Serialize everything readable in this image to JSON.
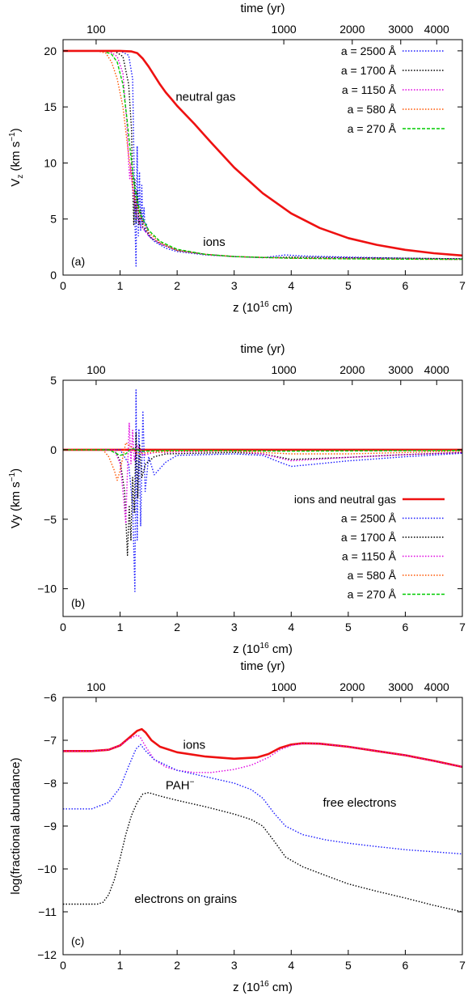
{
  "panels": [
    {
      "panel_label": "(a)",
      "chart_data": {
        "type": "line",
        "xlabel": "z (10",
        "xlabel_sup": "16",
        "xlabel_end": " cm)",
        "ylabel": "V",
        "ylabel_sub": "z",
        "ylabel_mid": " (km s",
        "ylabel_sup": "−1",
        "ylabel_end": ")",
        "x2label": "time (yr)",
        "xlim": [
          0,
          7
        ],
        "ylim": [
          0,
          21
        ],
        "xticks": [
          0,
          1,
          2,
          3,
          4,
          5,
          6,
          7
        ],
        "yticks": [
          0,
          5,
          10,
          15,
          20
        ],
        "x2ticks": [
          {
            "label": "100",
            "z": 0.58
          },
          {
            "label": "1000",
            "z": 3.87
          },
          {
            "label": "2000",
            "z": 5.07
          },
          {
            "label": "3000",
            "z": 5.92
          },
          {
            "label": "4000",
            "z": 6.55
          }
        ],
        "legend_position": "top-right",
        "annotations": [
          {
            "text": "neutral gas",
            "x": 2.5,
            "y": 15.9
          },
          {
            "text": "ions",
            "x": 2.65,
            "y": 2.95
          }
        ],
        "series": [
          {
            "name": "a = 2500 Å",
            "style": "dotted",
            "color": "#1a1aff",
            "x": [
              0,
              1.0,
              1.15,
              1.22,
              1.26,
              1.28,
              1.3,
              1.32,
              1.34,
              1.36,
              1.38,
              1.4,
              1.42,
              1.44,
              1.46,
              1.5,
              1.6,
              1.8,
              2.0,
              2.5,
              3.0,
              3.5,
              3.9,
              4.2,
              5.0,
              6.0,
              7.0
            ],
            "y": [
              20,
              20,
              19.6,
              17.5,
              5.0,
              0.8,
              11.5,
              3.5,
              9.2,
              4.0,
              8.0,
              4.5,
              6.0,
              3.8,
              4.6,
              3.5,
              3.0,
              2.4,
              2.1,
              1.8,
              1.65,
              1.55,
              1.8,
              1.7,
              1.6,
              1.5,
              1.45
            ]
          },
          {
            "name": "a = 1700 Å",
            "style": "dotted",
            "color": "#000000",
            "x": [
              0,
              0.9,
              1.05,
              1.15,
              1.2,
              1.22,
              1.24,
              1.26,
              1.28,
              1.3,
              1.33,
              1.36,
              1.4,
              1.45,
              1.55,
              1.7,
              2.0,
              2.5,
              3.0,
              3.6,
              4.0,
              5.0,
              6.0,
              7.0
            ],
            "y": [
              20,
              20,
              19.5,
              17.0,
              13.0,
              8.0,
              4.5,
              8.5,
              4.6,
              7.5,
              4.5,
              5.8,
              4.2,
              4.0,
              3.3,
              2.8,
              2.2,
              1.85,
              1.65,
              1.55,
              1.6,
              1.55,
              1.5,
              1.45
            ]
          },
          {
            "name": "a = 1150 Å",
            "style": "dotted",
            "color": "#e000e0",
            "x": [
              0,
              0.8,
              0.95,
              1.05,
              1.12,
              1.15,
              1.17,
              1.19,
              1.21,
              1.24,
              1.28,
              1.35,
              1.5,
              1.7,
              2.0,
              2.5,
              3.0,
              4.0,
              5.0,
              6.0,
              7.0
            ],
            "y": [
              20,
              20,
              19.5,
              18.0,
              13.5,
              10.0,
              8.5,
              10.0,
              8.0,
              7.0,
              5.5,
              4.5,
              3.5,
              2.8,
              2.2,
              1.85,
              1.65,
              1.5,
              1.5,
              1.45,
              1.4
            ]
          },
          {
            "name": "a = 580 Å",
            "style": "dotted",
            "color": "#ff5500",
            "x": [
              0,
              0.6,
              0.75,
              0.85,
              0.95,
              1.05,
              1.12,
              1.18,
              1.25,
              1.35,
              1.5,
              1.7,
              2.0,
              2.5,
              3.0,
              4.0,
              5.0,
              6.0,
              7.0
            ],
            "y": [
              20,
              20,
              19.8,
              19.0,
              17.5,
              15.0,
              12.0,
              9.5,
              7.0,
              5.2,
              3.8,
              2.9,
              2.2,
              1.85,
              1.65,
              1.5,
              1.45,
              1.42,
              1.4
            ]
          },
          {
            "name": "a = 270 Å",
            "style": "dashed",
            "color": "#00cc00",
            "x": [
              0,
              0.7,
              0.85,
              0.95,
              1.05,
              1.12,
              1.18,
              1.25,
              1.35,
              1.5,
              1.7,
              2.0,
              2.5,
              3.0,
              4.0,
              5.0,
              6.0,
              7.0
            ],
            "y": [
              20,
              20,
              19.7,
              19.0,
              17.0,
              14.0,
              11.0,
              8.0,
              5.5,
              4.0,
              3.0,
              2.3,
              1.85,
              1.65,
              1.5,
              1.45,
              1.42,
              1.4
            ]
          },
          {
            "name": "",
            "style": "solid",
            "color": "#ee1111",
            "x": [
              0,
              1.0,
              1.2,
              1.3,
              1.4,
              1.5,
              1.6,
              1.7,
              1.8,
              1.9,
              2.0,
              2.3,
              2.6,
              3.0,
              3.5,
              4.0,
              4.5,
              5.0,
              5.5,
              6.0,
              6.5,
              7.0
            ],
            "y": [
              20,
              20,
              19.95,
              19.8,
              19.3,
              18.6,
              17.8,
              17.0,
              16.3,
              15.7,
              15.1,
              13.5,
              11.8,
              9.6,
              7.3,
              5.5,
              4.2,
              3.3,
              2.7,
              2.25,
              1.95,
              1.75
            ]
          }
        ]
      }
    },
    {
      "panel_label": "(b)",
      "chart_data": {
        "type": "line",
        "xlabel": "z (10",
        "xlabel_sup": "16",
        "xlabel_end": " cm)",
        "ylabel": "Vy (km s",
        "ylabel_sub": "",
        "ylabel_mid": "",
        "ylabel_sup": "−1",
        "ylabel_end": ")",
        "x2label": "time (yr)",
        "xlim": [
          0,
          7
        ],
        "ylim": [
          -12,
          5
        ],
        "xticks": [
          0,
          1,
          2,
          3,
          4,
          5,
          6,
          7
        ],
        "yticks": [
          -10,
          -5,
          0,
          5
        ],
        "x2ticks": [
          {
            "label": "100",
            "z": 0.58
          },
          {
            "label": "1000",
            "z": 3.87
          },
          {
            "label": "2000",
            "z": 5.07
          },
          {
            "label": "3000",
            "z": 5.92
          },
          {
            "label": "4000",
            "z": 6.55
          }
        ],
        "legend_position": "right",
        "annotations": [],
        "series": [
          {
            "name": "ions and neutral gas",
            "style": "solid",
            "color": "#ee1111",
            "x": [
              0,
              7.0
            ],
            "y": [
              0,
              0
            ]
          },
          {
            "name": "a = 2500 Å",
            "style": "dotted",
            "color": "#1a1aff",
            "x": [
              0,
              1.0,
              1.15,
              1.22,
              1.26,
              1.28,
              1.3,
              1.33,
              1.36,
              1.4,
              1.44,
              1.5,
              1.6,
              1.8,
              2.0,
              3.0,
              3.5,
              3.8,
              4.0,
              4.5,
              5.0,
              6.0,
              7.0
            ],
            "y": [
              0,
              0,
              -1.0,
              -4.0,
              -10.2,
              4.3,
              -6.5,
              1.5,
              -5.5,
              2.8,
              -3.0,
              -0.5,
              -1.8,
              -0.9,
              -0.4,
              -0.3,
              -0.4,
              -0.9,
              -1.2,
              -1.0,
              -0.8,
              -0.5,
              -0.25
            ]
          },
          {
            "name": "a = 1700 Å",
            "style": "dotted",
            "color": "#000000",
            "x": [
              0,
              0.9,
              1.0,
              1.08,
              1.13,
              1.16,
              1.19,
              1.22,
              1.25,
              1.28,
              1.31,
              1.34,
              1.38,
              1.45,
              1.6,
              1.8,
              3.0,
              3.5,
              4.0,
              5.0,
              6.0,
              7.0
            ],
            "y": [
              0,
              0,
              -0.8,
              -3.0,
              -7.6,
              -4.0,
              -6.5,
              -2.0,
              -4.5,
              1.2,
              -3.5,
              0.4,
              -2.0,
              -1.0,
              -0.5,
              -0.3,
              -0.2,
              -0.3,
              -0.7,
              -0.55,
              -0.35,
              -0.2
            ]
          },
          {
            "name": "a = 1150 Å",
            "style": "dotted",
            "color": "#e000e0",
            "x": [
              0,
              0.9,
              1.0,
              1.05,
              1.1,
              1.13,
              1.16,
              1.19,
              1.22,
              1.25,
              1.3,
              1.4,
              1.6,
              3.0,
              3.5,
              4.0,
              5.0,
              6.0,
              7.0
            ],
            "y": [
              0,
              0,
              -1.0,
              -3.0,
              -5.3,
              -1.5,
              1.9,
              -1.0,
              1.4,
              -0.8,
              0.3,
              -0.4,
              -0.2,
              -0.1,
              -0.3,
              -0.8,
              -0.55,
              -0.35,
              -0.2
            ]
          },
          {
            "name": "a = 580 Å",
            "style": "dotted",
            "color": "#ff5500",
            "x": [
              0,
              0.7,
              0.8,
              0.9,
              0.95,
              1.0,
              1.05,
              1.1,
              1.2,
              1.3,
              1.5,
              2.0,
              3.0,
              4.0,
              5.0,
              6.0,
              7.0
            ],
            "y": [
              0,
              0,
              -0.5,
              -1.5,
              -2.2,
              -1.5,
              -0.5,
              0.5,
              0.2,
              -0.3,
              -0.2,
              -0.1,
              -0.1,
              -0.3,
              -0.3,
              -0.2,
              -0.1
            ]
          },
          {
            "name": "a = 270 Å",
            "style": "dashed",
            "color": "#00cc00",
            "x": [
              0,
              0.8,
              0.9,
              1.0,
              1.1,
              1.2,
              1.4,
              2.0,
              4.0,
              7.0
            ],
            "y": [
              0,
              0,
              -0.2,
              -0.4,
              -0.3,
              0.1,
              -0.1,
              -0.05,
              -0.1,
              -0.05
            ]
          }
        ]
      }
    },
    {
      "panel_label": "(c)",
      "chart_data": {
        "type": "line",
        "xlabel": "z (10",
        "xlabel_sup": "16",
        "xlabel_end": " cm)",
        "ylabel": "log(fractional abundance)",
        "ylabel_sub": "",
        "ylabel_mid": "",
        "ylabel_sup": "",
        "ylabel_end": "",
        "x2label": "time (yr)",
        "xlim": [
          0,
          7
        ],
        "ylim": [
          -12,
          -6
        ],
        "xticks": [
          0,
          1,
          2,
          3,
          4,
          5,
          6,
          7
        ],
        "yticks": [
          -12,
          -11,
          -10,
          -9,
          -8,
          -7,
          -6
        ],
        "x2ticks": [
          {
            "label": "100",
            "z": 0.58
          },
          {
            "label": "1000",
            "z": 3.87
          },
          {
            "label": "2000",
            "z": 5.07
          },
          {
            "label": "3000",
            "z": 5.92
          },
          {
            "label": "4000",
            "z": 6.55
          }
        ],
        "legend_position": "none",
        "annotations": [
          {
            "text": "ions",
            "x": 2.3,
            "y": -7.1
          },
          {
            "text": "PAH",
            "sup": "−",
            "x": 2.05,
            "y": -8.05
          },
          {
            "text": "free electrons",
            "x": 5.2,
            "y": -8.45
          },
          {
            "text": "electrons on grains",
            "x": 2.15,
            "y": -10.7
          }
        ],
        "series": [
          {
            "name": "",
            "style": "solid",
            "color": "#ee1111",
            "x": [
              0,
              0.5,
              0.8,
              1.0,
              1.15,
              1.3,
              1.38,
              1.45,
              1.55,
              1.7,
              2.0,
              2.5,
              3.0,
              3.4,
              3.6,
              3.8,
              4.0,
              4.2,
              4.5,
              5.0,
              5.5,
              6.0,
              6.5,
              7.0
            ],
            "y": [
              -7.25,
              -7.25,
              -7.22,
              -7.12,
              -6.95,
              -6.78,
              -6.74,
              -6.82,
              -7.0,
              -7.15,
              -7.28,
              -7.38,
              -7.43,
              -7.4,
              -7.32,
              -7.18,
              -7.1,
              -7.07,
              -7.08,
              -7.15,
              -7.25,
              -7.35,
              -7.48,
              -7.62
            ]
          },
          {
            "name": "",
            "style": "dotted",
            "color": "#e000e0",
            "x": [
              0,
              0.5,
              0.8,
              1.0,
              1.15,
              1.3,
              1.35,
              1.45,
              1.6,
              1.8,
              2.0,
              2.3,
              2.6,
              3.0,
              3.3,
              3.6,
              3.8,
              4.0,
              4.2,
              4.5,
              5.0,
              6.0,
              7.0
            ],
            "y": [
              -7.25,
              -7.25,
              -7.22,
              -7.12,
              -6.97,
              -6.88,
              -6.92,
              -7.15,
              -7.45,
              -7.62,
              -7.7,
              -7.75,
              -7.75,
              -7.68,
              -7.58,
              -7.4,
              -7.22,
              -7.12,
              -7.07,
              -7.08,
              -7.15,
              -7.35,
              -7.62
            ]
          },
          {
            "name": "",
            "style": "dotted",
            "color": "#1a1aff",
            "x": [
              0,
              0.5,
              0.8,
              1.0,
              1.15,
              1.28,
              1.36,
              1.45,
              1.6,
              2.0,
              2.5,
              3.0,
              3.3,
              3.5,
              3.7,
              3.9,
              4.2,
              4.6,
              5.0,
              5.5,
              6.0,
              6.5,
              7.0
            ],
            "y": [
              -8.6,
              -8.6,
              -8.45,
              -8.1,
              -7.6,
              -7.2,
              -7.1,
              -7.25,
              -7.45,
              -7.7,
              -7.85,
              -8.0,
              -8.15,
              -8.35,
              -8.7,
              -9.0,
              -9.2,
              -9.32,
              -9.4,
              -9.48,
              -9.55,
              -9.6,
              -9.65
            ]
          },
          {
            "name": "",
            "style": "dotted",
            "color": "#000000",
            "x": [
              0,
              0.6,
              0.7,
              0.8,
              0.9,
              1.0,
              1.1,
              1.2,
              1.3,
              1.4,
              1.5,
              1.7,
              2.0,
              2.5,
              3.0,
              3.3,
              3.5,
              3.7,
              3.9,
              4.2,
              4.6,
              5.0,
              5.5,
              6.0,
              6.5,
              7.0
            ],
            "y": [
              -10.82,
              -10.82,
              -10.78,
              -10.6,
              -10.25,
              -9.75,
              -9.2,
              -8.75,
              -8.45,
              -8.25,
              -8.22,
              -8.3,
              -8.4,
              -8.55,
              -8.72,
              -8.85,
              -9.0,
              -9.35,
              -9.72,
              -9.95,
              -10.15,
              -10.35,
              -10.52,
              -10.68,
              -10.85,
              -11.0
            ]
          }
        ]
      }
    }
  ]
}
